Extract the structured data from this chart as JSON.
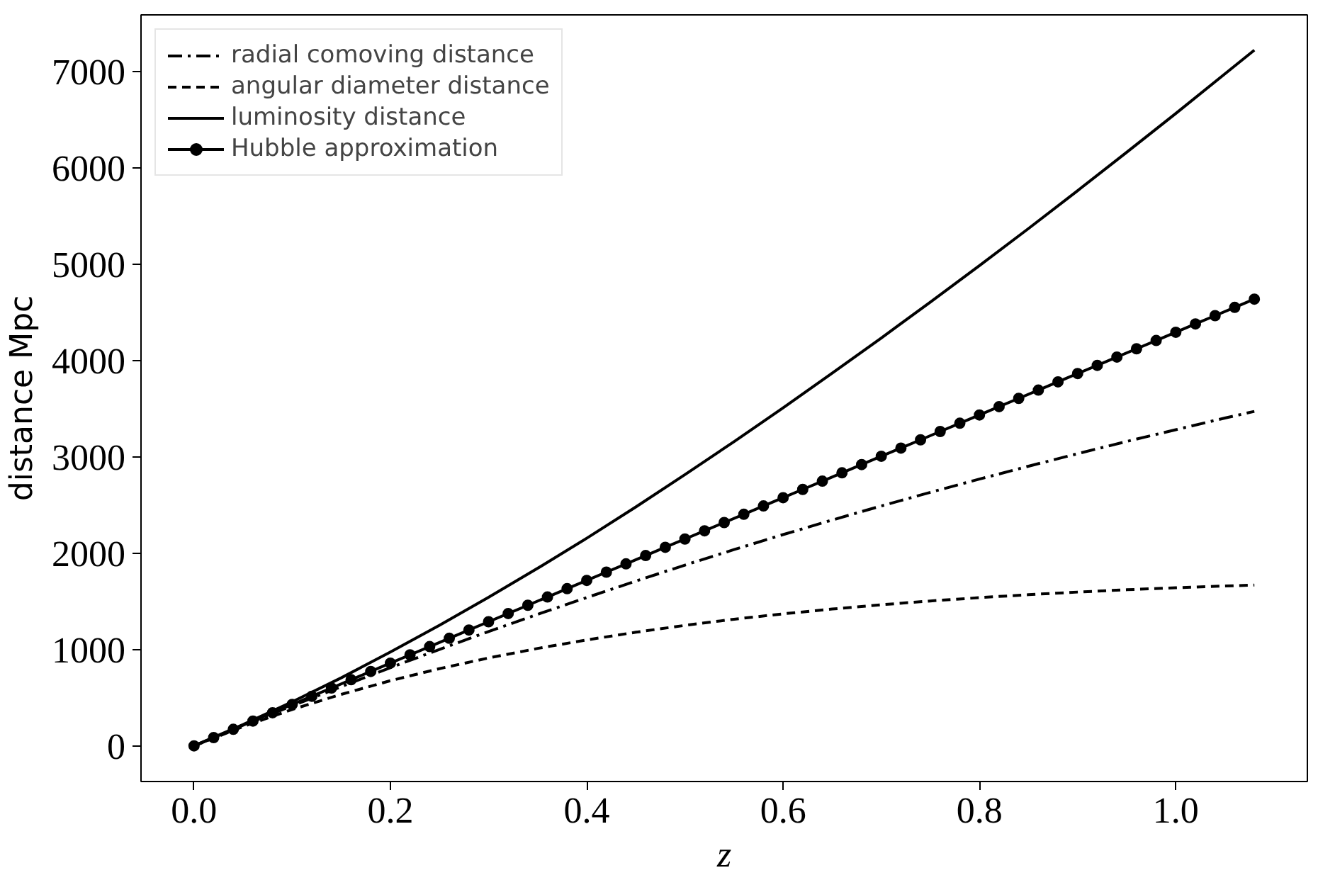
{
  "chart_data": {
    "type": "line",
    "xlabel": "z",
    "ylabel": "distance Mpc",
    "x": [
      0,
      0.05,
      0.1,
      0.15,
      0.2,
      0.25,
      0.3,
      0.35,
      0.4,
      0.45,
      0.5,
      0.55,
      0.6,
      0.65,
      0.7,
      0.75,
      0.8,
      0.85,
      0.9,
      0.95,
      1.0,
      1.05,
      1.08
    ],
    "series": [
      {
        "name": "radial comoving distance",
        "color": "#000000",
        "line_style": "dashdot",
        "marker": "none",
        "values": [
          0,
          211,
          416,
          615,
          812,
          1002,
          1187,
          1366,
          1540,
          1711,
          1877,
          2038,
          2194,
          2345,
          2491,
          2633,
          2770,
          2904,
          3034,
          3161,
          3283,
          3404,
          3473
        ]
      },
      {
        "name": "angular diameter distance",
        "color": "#000000",
        "line_style": "dashed",
        "marker": "none",
        "values": [
          0,
          201,
          378,
          535,
          677,
          802,
          913,
          1012,
          1100,
          1180,
          1251,
          1315,
          1371,
          1421,
          1465,
          1505,
          1539,
          1570,
          1597,
          1621,
          1642,
          1660,
          1670
        ]
      },
      {
        "name": "luminosity distance",
        "color": "#000000",
        "line_style": "solid",
        "marker": "none",
        "values": [
          0,
          222,
          458,
          707,
          974,
          1253,
          1543,
          1844,
          2156,
          2481,
          2816,
          3159,
          3510,
          3870,
          4235,
          4608,
          4986,
          5372,
          5765,
          6164,
          6566,
          6978,
          7224
        ]
      },
      {
        "name": "Hubble approximation",
        "color": "#000000",
        "line_style": "solid",
        "marker": "circle",
        "x": [
          0,
          0.02,
          0.04,
          0.06,
          0.08,
          0.1,
          0.12,
          0.14,
          0.16,
          0.18,
          0.2,
          0.22,
          0.24,
          0.26,
          0.28,
          0.3,
          0.32,
          0.34,
          0.36,
          0.38,
          0.4,
          0.42,
          0.44,
          0.46,
          0.48,
          0.5,
          0.52,
          0.54,
          0.56,
          0.58,
          0.6,
          0.62,
          0.64,
          0.66,
          0.68,
          0.7,
          0.72,
          0.74,
          0.76,
          0.78,
          0.8,
          0.82,
          0.84,
          0.86,
          0.88,
          0.9,
          0.92,
          0.94,
          0.96,
          0.98,
          1.0,
          1.02,
          1.04,
          1.06,
          1.08
        ],
        "values": [
          0,
          86,
          172,
          258,
          344,
          430,
          515,
          601,
          687,
          773,
          859,
          945,
          1031,
          1117,
          1203,
          1289,
          1374,
          1460,
          1546,
          1632,
          1718,
          1804,
          1890,
          1976,
          2062,
          2148,
          2233,
          2319,
          2405,
          2491,
          2577,
          2663,
          2749,
          2835,
          2921,
          3007,
          3092,
          3178,
          3264,
          3350,
          3436,
          3522,
          3608,
          3694,
          3780,
          3866,
          3951,
          4037,
          4123,
          4209,
          4295,
          4381,
          4467,
          4553,
          4639
        ]
      }
    ],
    "xlim": [
      -0.054,
      1.134
    ],
    "ylim": [
      -370,
      7590
    ],
    "xticks": [
      {
        "value": 0,
        "label": "0.0"
      },
      {
        "value": 0.2,
        "label": "0.2"
      },
      {
        "value": 0.4,
        "label": "0.4"
      },
      {
        "value": 0.6,
        "label": "0.6"
      },
      {
        "value": 0.8,
        "label": "0.8"
      },
      {
        "value": 1.0,
        "label": "1.0"
      }
    ],
    "yticks": [
      0,
      1000,
      2000,
      3000,
      4000,
      5000,
      6000,
      7000
    ],
    "grid": false,
    "legend": "top left"
  }
}
